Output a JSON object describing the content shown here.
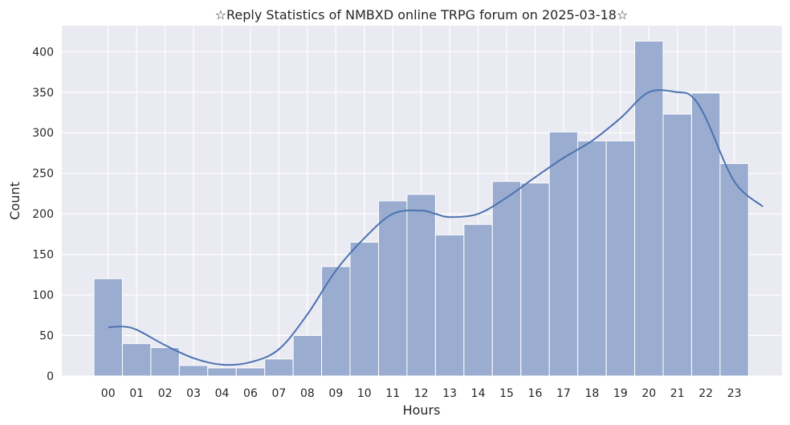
{
  "chart_data": {
    "type": "bar",
    "title": "☆Reply Statistics of NMBXD online TRPG forum on 2025-03-18☆",
    "xlabel": "Hours",
    "ylabel": "Count",
    "categories": [
      "00",
      "01",
      "02",
      "03",
      "04",
      "06",
      "07",
      "08",
      "09",
      "10",
      "11",
      "12",
      "13",
      "14",
      "15",
      "16",
      "17",
      "18",
      "19",
      "20",
      "21",
      "22",
      "23"
    ],
    "values": [
      120,
      40,
      35,
      13,
      10,
      10,
      21,
      50,
      135,
      165,
      216,
      224,
      174,
      187,
      240,
      238,
      301,
      290,
      290,
      413,
      323,
      349,
      262
    ],
    "ylim": [
      0,
      432
    ],
    "yticks": [
      0,
      50,
      100,
      150,
      200,
      250,
      300,
      350,
      400
    ],
    "kde": {
      "x": [
        0,
        0.5,
        1,
        2,
        3,
        4,
        5,
        6,
        7,
        8,
        9,
        10,
        11,
        11.5,
        12,
        13,
        14,
        15,
        16,
        17,
        18,
        19,
        20,
        20.5,
        21,
        22,
        23
      ],
      "y": [
        60,
        61,
        57,
        38,
        22,
        14,
        17,
        33,
        76,
        130,
        170,
        200,
        204,
        200,
        196,
        200,
        220,
        245,
        269,
        290,
        318,
        350,
        350,
        345,
        318,
        240,
        209
      ]
    },
    "colors": {
      "bar_fill": "#9AADD0",
      "bar_stroke": "#FFFFFF",
      "kde_line": "#4C72B0",
      "plot_bg": "#EAEAF2",
      "grid": "#FFFFFF"
    },
    "grid": true,
    "legend": null
  }
}
